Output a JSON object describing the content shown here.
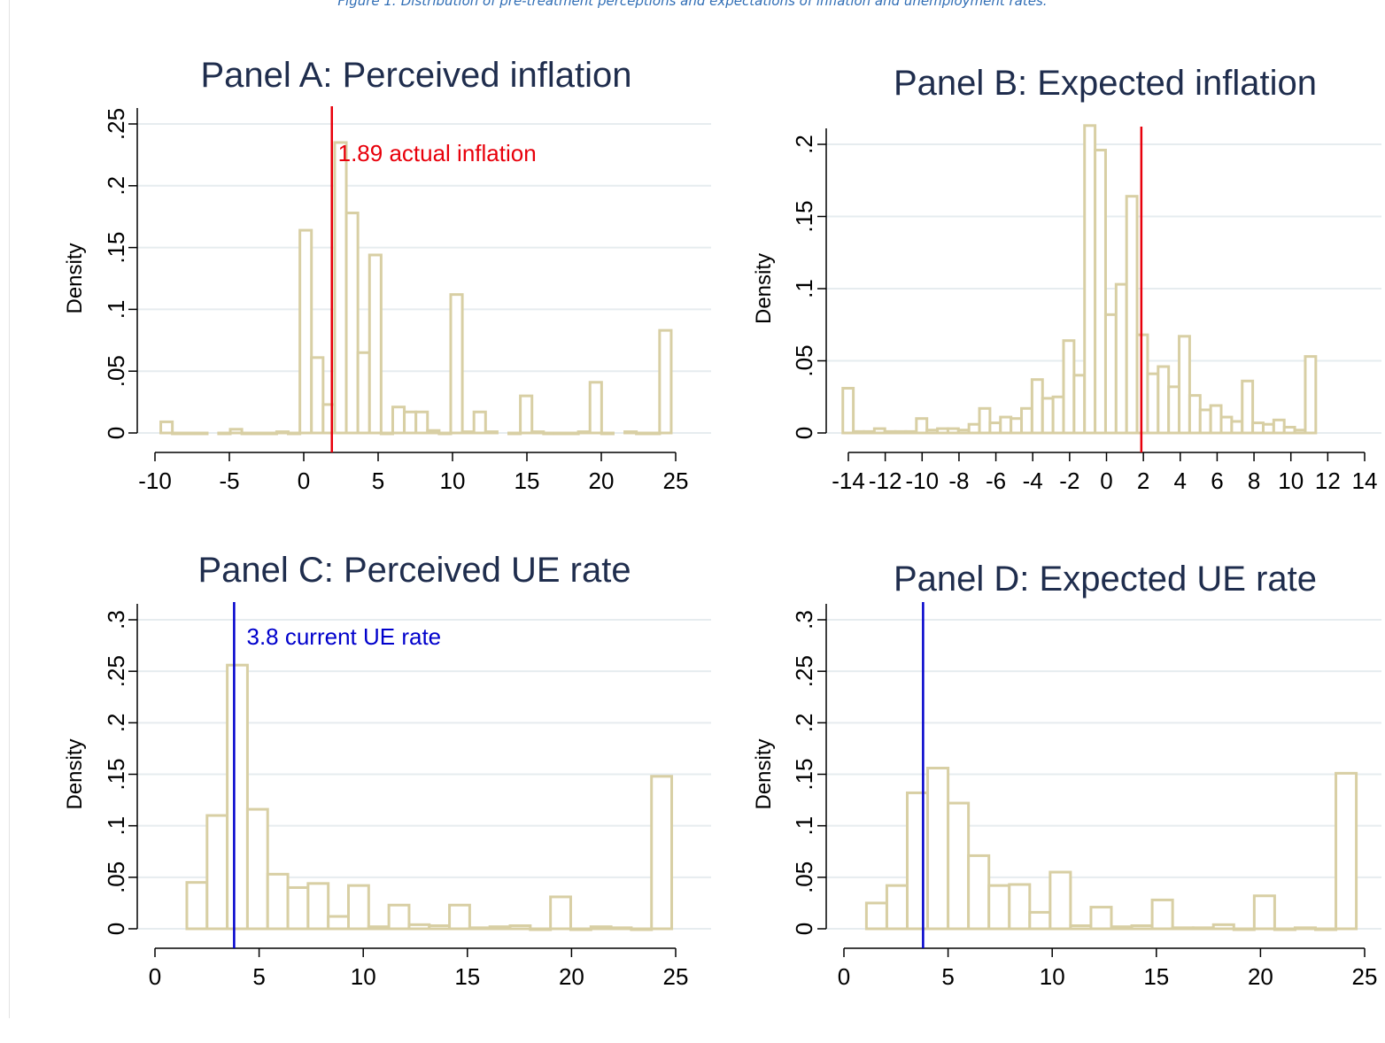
{
  "caption": "Figure 1: Distribution of pre-treatment perceptions and expectations of inflation and unemployment rates.",
  "colors": {
    "bar_fill": "#ffffff",
    "bar_stroke": "#d8cfa4",
    "grid": "#e6ecef",
    "title": "#1f2d4d",
    "inflation_line": "#e8000b",
    "ue_line": "#0000cc"
  },
  "chart_data": [
    {
      "type": "bar",
      "panel": "A",
      "title": "Panel A: Perceived inflation",
      "ylabel": "Density",
      "xlabel": "",
      "xlim": [
        -10,
        25
      ],
      "ylim": [
        0,
        0.25
      ],
      "xticks": [
        -10,
        -5,
        0,
        5,
        10,
        15,
        20,
        25
      ],
      "xtick_labels": [
        "-10",
        "-5",
        "0",
        "5",
        "10",
        "15",
        "20",
        "25"
      ],
      "yticks": [
        0,
        0.05,
        0.1,
        0.15,
        0.2,
        0.25
      ],
      "ytick_labels": [
        "0",
        ".05",
        ".1",
        ".15",
        ".2",
        ".25"
      ],
      "grid": true,
      "bar_width": 0.78,
      "bars": [
        {
          "x": -9.61,
          "y": 0.009
        },
        {
          "x": -8.83,
          "y": 0.0
        },
        {
          "x": -8.05,
          "y": 0.0
        },
        {
          "x": -7.27,
          "y": 0.0
        },
        {
          "x": -5.72,
          "y": 0.0
        },
        {
          "x": -4.94,
          "y": 0.003
        },
        {
          "x": -4.16,
          "y": 0.0
        },
        {
          "x": -3.38,
          "y": 0.0
        },
        {
          "x": -2.6,
          "y": 0.0
        },
        {
          "x": -1.82,
          "y": 0.001
        },
        {
          "x": -1.04,
          "y": 0.0
        },
        {
          "x": -0.26,
          "y": 0.164
        },
        {
          "x": 0.52,
          "y": 0.061
        },
        {
          "x": 1.3,
          "y": 0.023
        },
        {
          "x": 2.08,
          "y": 0.235
        },
        {
          "x": 2.86,
          "y": 0.178
        },
        {
          "x": 3.64,
          "y": 0.065
        },
        {
          "x": 4.42,
          "y": 0.144
        },
        {
          "x": 5.2,
          "y": 0.0
        },
        {
          "x": 5.98,
          "y": 0.021
        },
        {
          "x": 6.76,
          "y": 0.017
        },
        {
          "x": 7.54,
          "y": 0.017
        },
        {
          "x": 8.32,
          "y": 0.002
        },
        {
          "x": 9.1,
          "y": 0.0
        },
        {
          "x": 9.88,
          "y": 0.112
        },
        {
          "x": 10.66,
          "y": 0.001
        },
        {
          "x": 11.44,
          "y": 0.017
        },
        {
          "x": 12.22,
          "y": 0.001
        },
        {
          "x": 13.78,
          "y": 0.0
        },
        {
          "x": 14.56,
          "y": 0.03
        },
        {
          "x": 15.34,
          "y": 0.001
        },
        {
          "x": 16.12,
          "y": 0.0
        },
        {
          "x": 16.9,
          "y": 0.0
        },
        {
          "x": 17.68,
          "y": 0.0
        },
        {
          "x": 18.46,
          "y": 0.001
        },
        {
          "x": 19.24,
          "y": 0.041
        },
        {
          "x": 20.02,
          "y": 0.0
        },
        {
          "x": 21.58,
          "y": 0.001
        },
        {
          "x": 22.36,
          "y": 0.0
        },
        {
          "x": 23.14,
          "y": 0.0
        },
        {
          "x": 23.92,
          "y": 0.083
        }
      ],
      "vline": {
        "x": 1.89,
        "color": "#e8000b",
        "label": "1.89 actual inflation",
        "label_x": 2.3,
        "label_y": 0.22
      }
    },
    {
      "type": "bar",
      "panel": "B",
      "title": "Panel B: Expected inflation",
      "ylabel": "Density",
      "xlabel": "",
      "xlim": [
        -14,
        14
      ],
      "ylim": [
        0,
        0.2
      ],
      "xticks": [
        -14,
        -12,
        -10,
        -8,
        -6,
        -4,
        -2,
        0,
        2,
        4,
        6,
        8,
        10,
        12,
        14
      ],
      "xtick_labels": [
        "-14",
        "-12",
        "-10",
        "-8",
        "-6",
        "-4",
        "-2",
        "0",
        "2",
        "4",
        "6",
        "8",
        "10",
        "12",
        "14"
      ],
      "yticks": [
        0,
        0.05,
        0.1,
        0.15,
        0.2
      ],
      "ytick_labels": [
        "0",
        ".05",
        ".1",
        ".15",
        ".2"
      ],
      "grid": true,
      "bar_width": 0.57,
      "bars": [
        {
          "x": -14.3,
          "y": 0.031
        },
        {
          "x": -13.73,
          "y": 0.001
        },
        {
          "x": -13.16,
          "y": 0.001
        },
        {
          "x": -12.59,
          "y": 0.003
        },
        {
          "x": -12.02,
          "y": 0.001
        },
        {
          "x": -11.45,
          "y": 0.001
        },
        {
          "x": -10.88,
          "y": 0.001
        },
        {
          "x": -10.31,
          "y": 0.01
        },
        {
          "x": -9.74,
          "y": 0.002
        },
        {
          "x": -9.17,
          "y": 0.003
        },
        {
          "x": -8.6,
          "y": 0.003
        },
        {
          "x": -8.03,
          "y": 0.002
        },
        {
          "x": -7.46,
          "y": 0.006
        },
        {
          "x": -6.89,
          "y": 0.017
        },
        {
          "x": -6.32,
          "y": 0.007
        },
        {
          "x": -5.75,
          "y": 0.011
        },
        {
          "x": -5.18,
          "y": 0.01
        },
        {
          "x": -4.61,
          "y": 0.017
        },
        {
          "x": -4.04,
          "y": 0.037
        },
        {
          "x": -3.47,
          "y": 0.024
        },
        {
          "x": -2.9,
          "y": 0.025
        },
        {
          "x": -2.33,
          "y": 0.064
        },
        {
          "x": -1.76,
          "y": 0.04
        },
        {
          "x": -1.19,
          "y": 0.213
        },
        {
          "x": -0.62,
          "y": 0.196
        },
        {
          "x": -0.05,
          "y": 0.082
        },
        {
          "x": 0.52,
          "y": 0.103
        },
        {
          "x": 1.09,
          "y": 0.164
        },
        {
          "x": 1.66,
          "y": 0.068
        },
        {
          "x": 2.23,
          "y": 0.041
        },
        {
          "x": 2.8,
          "y": 0.046
        },
        {
          "x": 3.37,
          "y": 0.032
        },
        {
          "x": 3.94,
          "y": 0.067
        },
        {
          "x": 4.51,
          "y": 0.026
        },
        {
          "x": 5.08,
          "y": 0.016
        },
        {
          "x": 5.65,
          "y": 0.019
        },
        {
          "x": 6.22,
          "y": 0.011
        },
        {
          "x": 6.79,
          "y": 0.008
        },
        {
          "x": 7.36,
          "y": 0.036
        },
        {
          "x": 7.93,
          "y": 0.007
        },
        {
          "x": 8.5,
          "y": 0.006
        },
        {
          "x": 9.07,
          "y": 0.009
        },
        {
          "x": 9.64,
          "y": 0.004
        },
        {
          "x": 10.21,
          "y": 0.002
        },
        {
          "x": 10.78,
          "y": 0.053
        }
      ],
      "vline": {
        "x": 1.89,
        "color": "#e8000b",
        "label": "",
        "label_x": 0,
        "label_y": 0
      }
    },
    {
      "type": "bar",
      "panel": "C",
      "title": "Panel C: Perceived UE rate",
      "ylabel": "Density",
      "xlabel": "",
      "xlim": [
        0,
        25
      ],
      "ylim": [
        0,
        0.3
      ],
      "xticks": [
        0,
        5,
        10,
        15,
        20,
        25
      ],
      "xtick_labels": [
        "0",
        "5",
        "10",
        "15",
        "20",
        "25"
      ],
      "yticks": [
        0,
        0.05,
        0.1,
        0.15,
        0.2,
        0.25,
        0.3
      ],
      "ytick_labels": [
        "0",
        ".05",
        ".1",
        ".15",
        ".2",
        ".25",
        ".3"
      ],
      "grid": true,
      "bar_width": 0.97,
      "bars": [
        {
          "x": 1.53,
          "y": 0.045
        },
        {
          "x": 2.5,
          "y": 0.11
        },
        {
          "x": 3.47,
          "y": 0.256
        },
        {
          "x": 4.44,
          "y": 0.116
        },
        {
          "x": 5.41,
          "y": 0.053
        },
        {
          "x": 6.38,
          "y": 0.04
        },
        {
          "x": 7.35,
          "y": 0.044
        },
        {
          "x": 8.32,
          "y": 0.012
        },
        {
          "x": 9.29,
          "y": 0.042
        },
        {
          "x": 10.26,
          "y": 0.002
        },
        {
          "x": 11.23,
          "y": 0.023
        },
        {
          "x": 12.2,
          "y": 0.004
        },
        {
          "x": 13.17,
          "y": 0.003
        },
        {
          "x": 14.14,
          "y": 0.023
        },
        {
          "x": 15.11,
          "y": 0.001
        },
        {
          "x": 16.08,
          "y": 0.002
        },
        {
          "x": 17.05,
          "y": 0.003
        },
        {
          "x": 18.02,
          "y": 0.0
        },
        {
          "x": 18.99,
          "y": 0.031
        },
        {
          "x": 19.96,
          "y": 0.0
        },
        {
          "x": 20.93,
          "y": 0.002
        },
        {
          "x": 21.9,
          "y": 0.001
        },
        {
          "x": 22.87,
          "y": 0.0
        },
        {
          "x": 23.84,
          "y": 0.148
        }
      ],
      "vline": {
        "x": 3.8,
        "color": "#0000cc",
        "label": "3.8 current UE rate",
        "label_x": 4.4,
        "label_y": 0.276
      }
    },
    {
      "type": "bar",
      "panel": "D",
      "title": "Panel D: Expected UE rate",
      "ylabel": "Density",
      "xlabel": "",
      "xlim": [
        0,
        25
      ],
      "ylim": [
        0,
        0.3
      ],
      "xticks": [
        0,
        5,
        10,
        15,
        20,
        25
      ],
      "xtick_labels": [
        "0",
        "5",
        "10",
        "15",
        "20",
        "25"
      ],
      "yticks": [
        0,
        0.05,
        0.1,
        0.15,
        0.2,
        0.25,
        0.3
      ],
      "ytick_labels": [
        "0",
        ".05",
        ".1",
        ".15",
        ".2",
        ".25",
        ".3"
      ],
      "grid": true,
      "bar_width": 0.98,
      "bars": [
        {
          "x": 1.08,
          "y": 0.025
        },
        {
          "x": 2.06,
          "y": 0.042
        },
        {
          "x": 3.04,
          "y": 0.132
        },
        {
          "x": 4.02,
          "y": 0.156
        },
        {
          "x": 5.0,
          "y": 0.122
        },
        {
          "x": 5.98,
          "y": 0.071
        },
        {
          "x": 6.96,
          "y": 0.042
        },
        {
          "x": 7.94,
          "y": 0.043
        },
        {
          "x": 8.92,
          "y": 0.016
        },
        {
          "x": 9.9,
          "y": 0.055
        },
        {
          "x": 10.88,
          "y": 0.003
        },
        {
          "x": 11.86,
          "y": 0.021
        },
        {
          "x": 12.84,
          "y": 0.002
        },
        {
          "x": 13.82,
          "y": 0.003
        },
        {
          "x": 14.8,
          "y": 0.028
        },
        {
          "x": 15.78,
          "y": 0.001
        },
        {
          "x": 16.76,
          "y": 0.001
        },
        {
          "x": 17.74,
          "y": 0.004
        },
        {
          "x": 18.72,
          "y": 0.0
        },
        {
          "x": 19.7,
          "y": 0.032
        },
        {
          "x": 20.68,
          "y": 0.0
        },
        {
          "x": 21.66,
          "y": 0.001
        },
        {
          "x": 22.64,
          "y": 0.0
        },
        {
          "x": 23.62,
          "y": 0.151
        }
      ],
      "vline": {
        "x": 3.8,
        "color": "#0000cc",
        "label": "",
        "label_x": 0,
        "label_y": 0
      }
    }
  ]
}
